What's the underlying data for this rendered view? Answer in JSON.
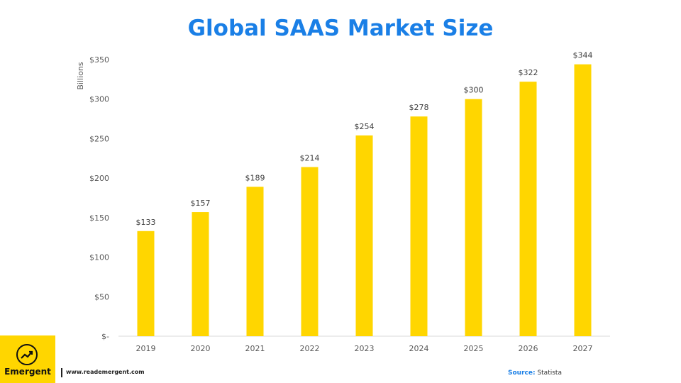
{
  "page": {
    "title": "Global SAAS Market Size",
    "footer_url": "www.reademergent.com",
    "source_label": "Source:",
    "source_value": "Statista",
    "logo_text": "Emergent",
    "logo_icon": "trend-up-arrow-icon",
    "colors": {
      "title": "#1a7fe6",
      "bar": "#ffd600",
      "logo_bg": "#ffd600"
    }
  },
  "chart_data": {
    "type": "bar",
    "title": "Global SAAS Market Size",
    "ylabel": "Billions",
    "xlabel": "",
    "categories": [
      "2019",
      "2020",
      "2021",
      "2022",
      "2023",
      "2024",
      "2025",
      "2026",
      "2027"
    ],
    "values": [
      133,
      157,
      189,
      214,
      254,
      278,
      300,
      322,
      344
    ],
    "value_labels": [
      "$133",
      "$157",
      "$189",
      "$214",
      "$254",
      "$278",
      "$300",
      "$322",
      "$344"
    ],
    "ylim": [
      0,
      350
    ],
    "yticks": [
      0,
      50,
      100,
      150,
      200,
      250,
      300,
      350
    ],
    "ytick_labels": [
      "$-",
      "$50",
      "$100",
      "$150",
      "$200",
      "$250",
      "$300",
      "$350"
    ],
    "grid": false,
    "legend": "none"
  }
}
